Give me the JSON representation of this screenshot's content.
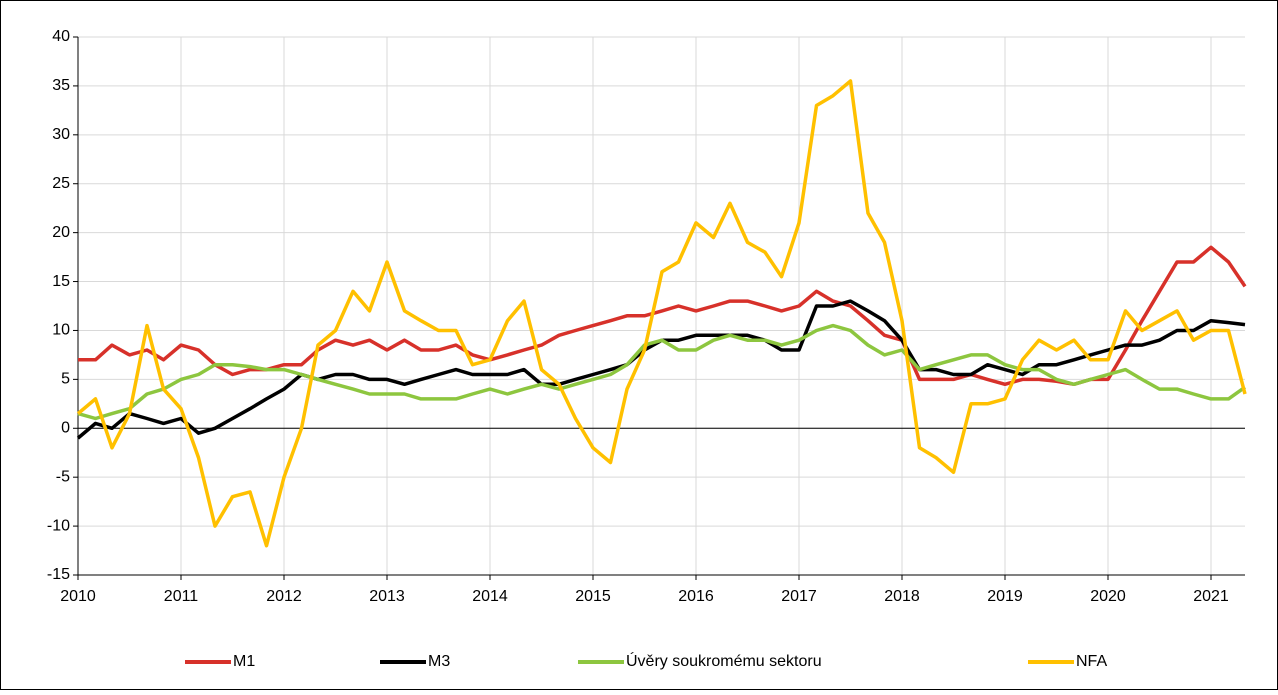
{
  "chart_data": {
    "type": "line",
    "x": [
      2010,
      2010.17,
      2010.33,
      2010.5,
      2010.67,
      2010.83,
      2011,
      2011.17,
      2011.33,
      2011.5,
      2011.67,
      2011.83,
      2012,
      2012.17,
      2012.33,
      2012.5,
      2012.67,
      2012.83,
      2013,
      2013.17,
      2013.33,
      2013.5,
      2013.67,
      2013.83,
      2014,
      2014.17,
      2014.33,
      2014.5,
      2014.67,
      2014.83,
      2015,
      2015.17,
      2015.33,
      2015.5,
      2015.67,
      2015.83,
      2016,
      2016.17,
      2016.33,
      2016.5,
      2016.67,
      2016.83,
      2017,
      2017.17,
      2017.33,
      2017.5,
      2017.67,
      2017.83,
      2018,
      2018.17,
      2018.33,
      2018.5,
      2018.67,
      2018.83,
      2019,
      2019.17,
      2019.33,
      2019.5,
      2019.67,
      2019.83,
      2020,
      2020.17,
      2020.33,
      2020.5,
      2020.67,
      2020.83,
      2021,
      2021.17,
      2021.33
    ],
    "series": [
      {
        "name": "M1",
        "color": "#d7312a",
        "values": [
          7,
          7,
          8.5,
          7.5,
          8,
          7,
          8.5,
          8,
          6.5,
          5.5,
          6,
          6,
          6.5,
          6.5,
          8,
          9,
          8.5,
          9,
          8,
          9,
          8,
          8,
          8.5,
          7.5,
          7,
          7.5,
          8,
          8.5,
          9.5,
          10,
          10.5,
          11,
          11.5,
          11.5,
          12,
          12.5,
          12,
          12.5,
          13,
          13,
          12.5,
          12,
          12.5,
          14,
          13,
          12.5,
          11,
          9.5,
          9,
          5,
          5,
          5,
          5.5,
          5,
          4.5,
          5,
          5,
          4.8,
          4.5,
          5,
          5,
          8,
          11,
          14,
          17,
          17,
          18.5,
          17,
          14.5
        ]
      },
      {
        "name": "M3",
        "color": "#000000",
        "values": [
          -1,
          0.5,
          0,
          1.5,
          1,
          0.5,
          1,
          -0.5,
          0,
          1,
          2,
          3,
          4,
          5.5,
          5,
          5.5,
          5.5,
          5,
          5,
          4.5,
          5,
          5.5,
          6,
          5.5,
          5.5,
          5.5,
          6,
          4.5,
          4.5,
          5,
          5.5,
          6,
          6.5,
          8,
          9,
          9,
          9.5,
          9.5,
          9.5,
          9.5,
          9,
          8,
          8,
          12.5,
          12.5,
          13,
          12,
          11,
          9,
          6,
          6,
          5.5,
          5.5,
          6.5,
          6,
          5.5,
          6.5,
          6.5,
          7,
          7.5,
          8,
          8.5,
          8.5,
          9,
          10,
          10,
          11,
          10.8,
          10.6
        ]
      },
      {
        "name": "Úvěry soukromému sektoru",
        "color": "#8dc63f",
        "values": [
          1.5,
          1,
          1.5,
          2,
          3.5,
          4,
          5,
          5.5,
          6.5,
          6.5,
          6.3,
          6,
          6,
          5.5,
          5,
          4.5,
          4,
          3.5,
          3.5,
          3.5,
          3,
          3,
          3,
          3.5,
          4,
          3.5,
          4,
          4.5,
          4,
          4.5,
          5,
          5.5,
          6.5,
          8.5,
          9,
          8,
          8,
          9,
          9.5,
          9,
          9,
          8.5,
          9,
          10,
          10.5,
          10,
          8.5,
          7.5,
          8,
          6,
          6.5,
          7,
          7.5,
          7.5,
          6.5,
          6,
          6,
          5,
          4.5,
          5,
          5.5,
          6,
          5,
          4,
          4,
          3.5,
          3,
          3,
          4.2
        ]
      },
      {
        "name": "NFA",
        "color": "#ffc000",
        "values": [
          1.5,
          3,
          -2,
          1.5,
          10.5,
          4,
          2,
          -3,
          -10,
          -7,
          -6.5,
          -12,
          -5,
          0,
          8.5,
          10,
          14,
          12,
          17,
          12,
          11,
          10,
          10,
          6.5,
          7,
          11,
          13,
          6,
          4.5,
          1,
          -2,
          -3.5,
          4,
          8,
          16,
          17,
          21,
          19.5,
          23,
          19,
          18,
          15.5,
          21,
          33,
          34,
          35.5,
          22,
          19,
          11,
          -2,
          -3,
          -4.5,
          2.5,
          2.5,
          3,
          7,
          9,
          8,
          9,
          7,
          7,
          12,
          10,
          11,
          12,
          9,
          10,
          10,
          3.5
        ]
      }
    ],
    "xlim": [
      2010,
      2021.33
    ],
    "xticks": [
      2010,
      2011,
      2012,
      2013,
      2014,
      2015,
      2016,
      2017,
      2018,
      2019,
      2020,
      2021
    ],
    "ylim": [
      -15,
      40
    ],
    "yticks": [
      -15,
      -10,
      -5,
      0,
      5,
      10,
      15,
      20,
      25,
      30,
      35,
      40
    ],
    "grid": true,
    "legend": "bottom"
  }
}
